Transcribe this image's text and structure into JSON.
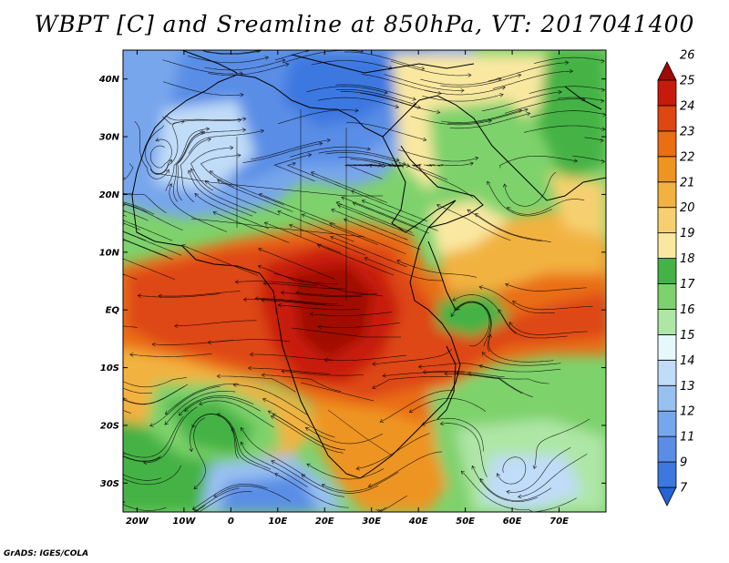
{
  "title": "WBPT [C] and Sreamline at 850hPa, VT: 2017041400",
  "credit": "GrADS: IGES/COLA",
  "map": {
    "lon_range": [
      -23,
      80
    ],
    "lat_range": [
      -35,
      45
    ],
    "lon_ticks": [
      {
        "v": -20,
        "label": "20W"
      },
      {
        "v": -10,
        "label": "10W"
      },
      {
        "v": 0,
        "label": "0"
      },
      {
        "v": 10,
        "label": "10E"
      },
      {
        "v": 20,
        "label": "20E"
      },
      {
        "v": 30,
        "label": "30E"
      },
      {
        "v": 40,
        "label": "40E"
      },
      {
        "v": 50,
        "label": "50E"
      },
      {
        "v": 60,
        "label": "60E"
      },
      {
        "v": 70,
        "label": "70E"
      }
    ],
    "lat_ticks": [
      {
        "v": 40,
        "label": "40N"
      },
      {
        "v": 30,
        "label": "30N"
      },
      {
        "v": 20,
        "label": "20N"
      },
      {
        "v": 10,
        "label": "10N"
      },
      {
        "v": 0,
        "label": "EQ"
      },
      {
        "v": -10,
        "label": "10S"
      },
      {
        "v": -20,
        "label": "20S"
      },
      {
        "v": -30,
        "label": "30S"
      }
    ]
  },
  "colorbar": {
    "levels": [
      "7",
      "9",
      "11",
      "12",
      "13",
      "14",
      "15",
      "16",
      "17",
      "18",
      "19",
      "20",
      "21",
      "22",
      "23",
      "24",
      "25",
      "26"
    ],
    "colors": [
      "#2464d4",
      "#3c78e0",
      "#5a8ee6",
      "#78a6ec",
      "#98c0f2",
      "#c0dcf8",
      "#e6f8fa",
      "#aee6a6",
      "#7ed26c",
      "#44b244",
      "#fae8a0",
      "#f6d070",
      "#f2b240",
      "#ee9420",
      "#ea6e14",
      "#de4612",
      "#c81a0a",
      "#a00a06"
    ]
  }
}
